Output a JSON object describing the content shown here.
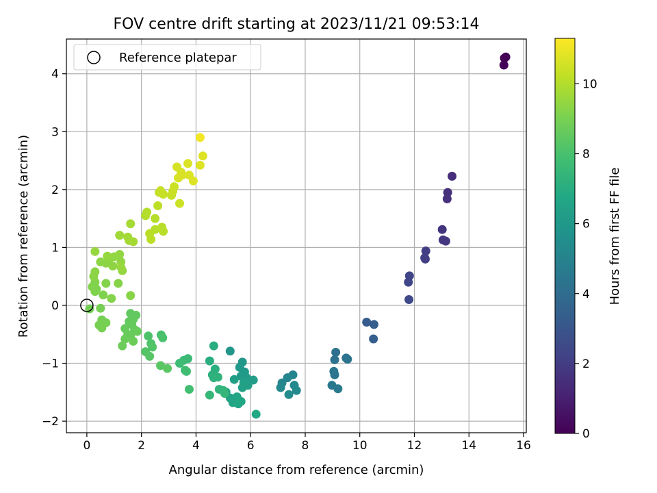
{
  "chart_data": {
    "type": "scatter",
    "title": "FOV centre drift starting at 2023/11/21 09:53:14",
    "xlabel": "Angular distance from reference (arcmin)",
    "ylabel": "Rotation from reference (arcmin)",
    "xlim": [
      -0.75,
      16.1
    ],
    "ylim": [
      -2.2,
      4.6
    ],
    "xticks": [
      0,
      2,
      4,
      6,
      8,
      10,
      12,
      14,
      16
    ],
    "yticks": [
      -2,
      -1,
      0,
      1,
      2,
      3,
      4
    ],
    "grid": true,
    "legend": {
      "placement": "top-left",
      "entries": [
        "Reference platepar"
      ]
    },
    "reference_point": {
      "x": 0,
      "y": 0,
      "label": "Reference platepar"
    },
    "colorbar": {
      "label": "Hours from first FF file",
      "range": [
        0,
        11.3
      ],
      "ticks": [
        0,
        2,
        4,
        6,
        8,
        10
      ],
      "colormap": "viridis"
    },
    "points": [
      {
        "x": 15.35,
        "y": 4.29,
        "c": 0.0
      },
      {
        "x": 15.3,
        "y": 4.27,
        "c": 0.05
      },
      {
        "x": 15.28,
        "y": 4.15,
        "c": 0.1
      },
      {
        "x": 13.38,
        "y": 2.23,
        "c": 1.5
      },
      {
        "x": 13.22,
        "y": 1.95,
        "c": 1.55
      },
      {
        "x": 13.2,
        "y": 1.84,
        "c": 1.6
      },
      {
        "x": 13.02,
        "y": 1.31,
        "c": 1.7
      },
      {
        "x": 13.05,
        "y": 1.13,
        "c": 1.75
      },
      {
        "x": 13.15,
        "y": 1.11,
        "c": 1.8
      },
      {
        "x": 12.42,
        "y": 0.94,
        "c": 2.0
      },
      {
        "x": 12.38,
        "y": 0.82,
        "c": 2.05
      },
      {
        "x": 12.4,
        "y": 0.8,
        "c": 2.1
      },
      {
        "x": 11.82,
        "y": 0.51,
        "c": 2.3
      },
      {
        "x": 11.78,
        "y": 0.4,
        "c": 2.35
      },
      {
        "x": 11.8,
        "y": 0.1,
        "c": 2.45
      },
      {
        "x": 10.25,
        "y": -0.29,
        "c": 3.3
      },
      {
        "x": 10.52,
        "y": -0.33,
        "c": 3.35
      },
      {
        "x": 10.5,
        "y": -0.58,
        "c": 3.4
      },
      {
        "x": 9.12,
        "y": -0.81,
        "c": 4.2
      },
      {
        "x": 9.08,
        "y": -0.94,
        "c": 4.25
      },
      {
        "x": 9.5,
        "y": -0.91,
        "c": 4.3
      },
      {
        "x": 9.55,
        "y": -0.93,
        "c": 4.35
      },
      {
        "x": 9.05,
        "y": -1.14,
        "c": 4.4
      },
      {
        "x": 9.08,
        "y": -1.2,
        "c": 4.45
      },
      {
        "x": 8.98,
        "y": -1.38,
        "c": 4.5
      },
      {
        "x": 9.2,
        "y": -1.44,
        "c": 4.55
      },
      {
        "x": 7.55,
        "y": -1.2,
        "c": 5.1
      },
      {
        "x": 7.35,
        "y": -1.25,
        "c": 5.15
      },
      {
        "x": 7.15,
        "y": -1.34,
        "c": 5.2
      },
      {
        "x": 7.1,
        "y": -1.42,
        "c": 5.25
      },
      {
        "x": 7.6,
        "y": -1.38,
        "c": 5.3
      },
      {
        "x": 7.68,
        "y": -1.47,
        "c": 5.35
      },
      {
        "x": 7.4,
        "y": -1.54,
        "c": 5.4
      },
      {
        "x": 5.25,
        "y": -0.79,
        "c": 5.9
      },
      {
        "x": 5.7,
        "y": -0.98,
        "c": 5.95
      },
      {
        "x": 5.6,
        "y": -1.07,
        "c": 6.0
      },
      {
        "x": 5.78,
        "y": -1.15,
        "c": 6.05
      },
      {
        "x": 5.65,
        "y": -1.22,
        "c": 6.1
      },
      {
        "x": 5.85,
        "y": -1.25,
        "c": 6.15
      },
      {
        "x": 5.95,
        "y": -1.3,
        "c": 6.2
      },
      {
        "x": 6.1,
        "y": -1.29,
        "c": 6.25
      },
      {
        "x": 5.4,
        "y": -1.28,
        "c": 6.3
      },
      {
        "x": 5.75,
        "y": -1.33,
        "c": 6.35
      },
      {
        "x": 5.9,
        "y": -1.38,
        "c": 6.4
      },
      {
        "x": 5.7,
        "y": -1.42,
        "c": 6.45
      },
      {
        "x": 5.1,
        "y": -1.5,
        "c": 6.5
      },
      {
        "x": 5.25,
        "y": -1.6,
        "c": 6.55
      },
      {
        "x": 5.5,
        "y": -1.58,
        "c": 6.6
      },
      {
        "x": 5.35,
        "y": -1.68,
        "c": 6.65
      },
      {
        "x": 5.55,
        "y": -1.7,
        "c": 6.7
      },
      {
        "x": 5.65,
        "y": -1.66,
        "c": 6.75
      },
      {
        "x": 6.2,
        "y": -1.88,
        "c": 6.8
      },
      {
        "x": 4.65,
        "y": -0.7,
        "c": 7.0
      },
      {
        "x": 4.5,
        "y": -0.96,
        "c": 7.05
      },
      {
        "x": 4.7,
        "y": -1.1,
        "c": 7.1
      },
      {
        "x": 4.6,
        "y": -1.2,
        "c": 7.15
      },
      {
        "x": 4.65,
        "y": -1.25,
        "c": 7.2
      },
      {
        "x": 4.8,
        "y": -1.24,
        "c": 7.25
      },
      {
        "x": 4.85,
        "y": -1.45,
        "c": 7.3
      },
      {
        "x": 5.0,
        "y": -1.47,
        "c": 7.35
      },
      {
        "x": 5.05,
        "y": -1.52,
        "c": 7.4
      },
      {
        "x": 4.5,
        "y": -1.55,
        "c": 7.45
      },
      {
        "x": 3.7,
        "y": -0.92,
        "c": 7.6
      },
      {
        "x": 3.55,
        "y": -0.95,
        "c": 7.65
      },
      {
        "x": 3.4,
        "y": -1.0,
        "c": 7.7
      },
      {
        "x": 3.6,
        "y": -1.12,
        "c": 7.75
      },
      {
        "x": 3.65,
        "y": -1.14,
        "c": 7.8
      },
      {
        "x": 3.75,
        "y": -1.45,
        "c": 7.85
      },
      {
        "x": 2.72,
        "y": -0.51,
        "c": 8.0
      },
      {
        "x": 2.78,
        "y": -0.56,
        "c": 8.05
      },
      {
        "x": 2.25,
        "y": -0.53,
        "c": 8.1
      },
      {
        "x": 2.35,
        "y": -0.66,
        "c": 8.15
      },
      {
        "x": 2.4,
        "y": -0.72,
        "c": 8.2
      },
      {
        "x": 2.15,
        "y": -0.8,
        "c": 8.25
      },
      {
        "x": 2.3,
        "y": -0.88,
        "c": 8.3
      },
      {
        "x": 2.7,
        "y": -1.04,
        "c": 8.35
      },
      {
        "x": 2.95,
        "y": -1.09,
        "c": 8.4
      },
      {
        "x": 1.6,
        "y": -0.14,
        "c": 8.5
      },
      {
        "x": 1.8,
        "y": -0.17,
        "c": 8.52
      },
      {
        "x": 1.7,
        "y": -0.24,
        "c": 8.54
      },
      {
        "x": 1.55,
        "y": -0.28,
        "c": 8.56
      },
      {
        "x": 1.65,
        "y": -0.33,
        "c": 8.58
      },
      {
        "x": 1.4,
        "y": -0.4,
        "c": 8.6
      },
      {
        "x": 1.75,
        "y": -0.42,
        "c": 8.62
      },
      {
        "x": 1.85,
        "y": -0.45,
        "c": 8.64
      },
      {
        "x": 1.5,
        "y": -0.5,
        "c": 8.66
      },
      {
        "x": 1.6,
        "y": -0.52,
        "c": 8.68
      },
      {
        "x": 1.4,
        "y": -0.58,
        "c": 8.7
      },
      {
        "x": 1.7,
        "y": -0.62,
        "c": 8.72
      },
      {
        "x": 1.3,
        "y": -0.7,
        "c": 8.74
      },
      {
        "x": 0.1,
        "y": -0.06,
        "c": 8.9
      },
      {
        "x": 0.5,
        "y": -0.05,
        "c": 8.92
      },
      {
        "x": 0.55,
        "y": -0.25,
        "c": 8.94
      },
      {
        "x": 0.7,
        "y": -0.3,
        "c": 8.96
      },
      {
        "x": 0.45,
        "y": -0.34,
        "c": 8.98
      },
      {
        "x": 0.55,
        "y": -0.39,
        "c": 9.0
      },
      {
        "x": 0.3,
        "y": 0.24,
        "c": 9.1
      },
      {
        "x": 0.35,
        "y": 0.28,
        "c": 9.12
      },
      {
        "x": 0.6,
        "y": 0.18,
        "c": 9.14
      },
      {
        "x": 0.2,
        "y": 0.32,
        "c": 9.16
      },
      {
        "x": 0.3,
        "y": 0.4,
        "c": 9.18
      },
      {
        "x": 0.7,
        "y": 0.38,
        "c": 9.2
      },
      {
        "x": 0.9,
        "y": 0.12,
        "c": 9.22
      },
      {
        "x": 1.15,
        "y": 0.38,
        "c": 9.24
      },
      {
        "x": 1.6,
        "y": 0.17,
        "c": 9.26
      },
      {
        "x": 0.25,
        "y": 0.5,
        "c": 9.3
      },
      {
        "x": 0.3,
        "y": 0.58,
        "c": 9.32
      },
      {
        "x": 0.5,
        "y": 0.75,
        "c": 9.34
      },
      {
        "x": 0.7,
        "y": 0.73,
        "c": 9.36
      },
      {
        "x": 0.8,
        "y": 0.78,
        "c": 9.38
      },
      {
        "x": 0.95,
        "y": 0.68,
        "c": 9.4
      },
      {
        "x": 1.0,
        "y": 0.84,
        "c": 9.42
      },
      {
        "x": 1.2,
        "y": 0.88,
        "c": 9.44
      },
      {
        "x": 1.25,
        "y": 0.75,
        "c": 9.46
      },
      {
        "x": 1.3,
        "y": 0.6,
        "c": 9.48
      },
      {
        "x": 0.75,
        "y": 0.85,
        "c": 9.5
      },
      {
        "x": 0.3,
        "y": 0.93,
        "c": 9.52
      },
      {
        "x": 1.25,
        "y": 0.66,
        "c": 9.54
      },
      {
        "x": 1.2,
        "y": 1.21,
        "c": 9.7
      },
      {
        "x": 1.5,
        "y": 1.18,
        "c": 9.72
      },
      {
        "x": 1.55,
        "y": 1.12,
        "c": 9.74
      },
      {
        "x": 1.7,
        "y": 1.1,
        "c": 9.76
      },
      {
        "x": 1.6,
        "y": 1.41,
        "c": 9.78
      },
      {
        "x": 2.15,
        "y": 1.55,
        "c": 10.0
      },
      {
        "x": 2.2,
        "y": 1.61,
        "c": 10.02
      },
      {
        "x": 2.5,
        "y": 1.5,
        "c": 10.04
      },
      {
        "x": 2.5,
        "y": 1.31,
        "c": 10.06
      },
      {
        "x": 2.75,
        "y": 1.35,
        "c": 10.08
      },
      {
        "x": 2.8,
        "y": 1.28,
        "c": 10.1
      },
      {
        "x": 2.3,
        "y": 1.24,
        "c": 10.12
      },
      {
        "x": 2.35,
        "y": 1.14,
        "c": 10.14
      },
      {
        "x": 2.6,
        "y": 1.72,
        "c": 10.16
      },
      {
        "x": 2.65,
        "y": 1.95,
        "c": 10.3
      },
      {
        "x": 2.7,
        "y": 1.98,
        "c": 10.32
      },
      {
        "x": 2.8,
        "y": 1.92,
        "c": 10.34
      },
      {
        "x": 3.1,
        "y": 1.9,
        "c": 10.36
      },
      {
        "x": 3.15,
        "y": 1.97,
        "c": 10.38
      },
      {
        "x": 3.2,
        "y": 2.05,
        "c": 10.4
      },
      {
        "x": 3.4,
        "y": 1.76,
        "c": 10.42
      },
      {
        "x": 3.3,
        "y": 2.39,
        "c": 10.6
      },
      {
        "x": 3.45,
        "y": 2.3,
        "c": 10.62
      },
      {
        "x": 3.35,
        "y": 2.2,
        "c": 10.64
      },
      {
        "x": 3.5,
        "y": 2.25,
        "c": 10.66
      },
      {
        "x": 3.7,
        "y": 2.45,
        "c": 10.68
      },
      {
        "x": 3.75,
        "y": 2.25,
        "c": 10.7
      },
      {
        "x": 3.9,
        "y": 2.15,
        "c": 10.72
      },
      {
        "x": 4.15,
        "y": 2.42,
        "c": 10.74
      },
      {
        "x": 4.25,
        "y": 2.58,
        "c": 10.76
      },
      {
        "x": 4.15,
        "y": 2.9,
        "c": 11.1
      }
    ]
  }
}
